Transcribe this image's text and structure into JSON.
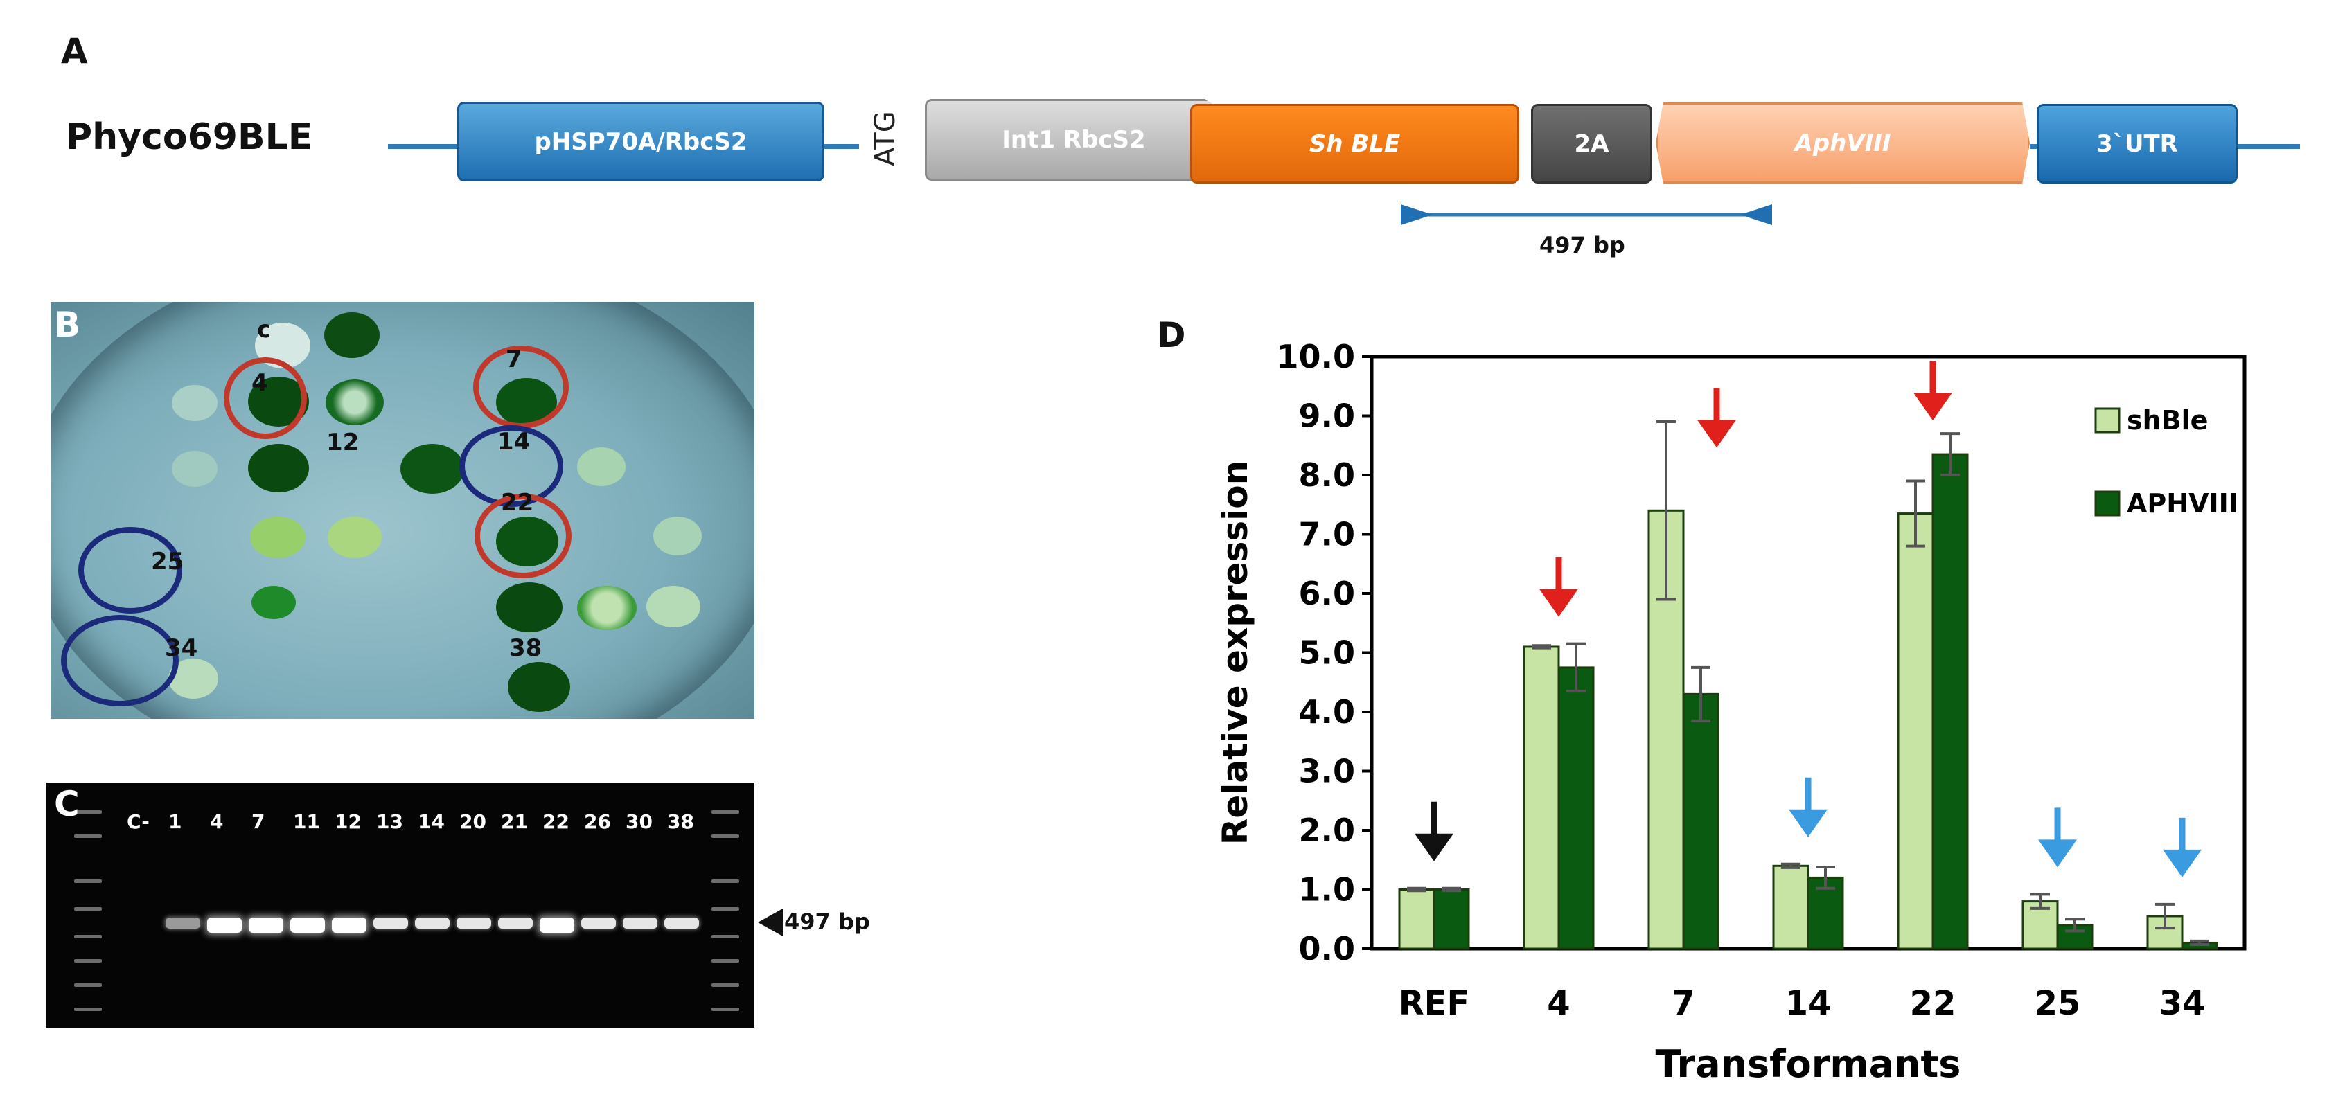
{
  "panel_a": {
    "letter": "A",
    "construct_name": "Phyco69BLE",
    "elements": {
      "promoter": "pHSP70A/RbcS2",
      "start_codon": "ATG",
      "intron": "Int1 RbcS2",
      "gene1": "Sh BLE",
      "linker": "2A",
      "gene2": "AphVIII",
      "utr": "3`UTR"
    },
    "amplicon": "497 bp"
  },
  "panel_b": {
    "letter": "B",
    "labels": {
      "control": "c",
      "c4": "4",
      "c12": "12",
      "c7": "7",
      "c14": "14",
      "c22": "22",
      "c25": "25",
      "c34": "34",
      "c38": "38"
    },
    "colors": {
      "high_ring": "#c0392b",
      "low_ring": "#1b2a7a",
      "colony": "#0c4f12"
    }
  },
  "panel_c": {
    "letter": "C",
    "lanes": [
      "C-",
      "1",
      "4",
      "7",
      "11",
      "12",
      "13",
      "14",
      "20",
      "21",
      "22",
      "26",
      "30",
      "38"
    ],
    "marker": "497 bp"
  },
  "panel_d": {
    "letter": "D",
    "chart_data": {
      "type": "bar",
      "categories": [
        "REF",
        "4",
        "7",
        "14",
        "22",
        "25",
        "34"
      ],
      "series": [
        {
          "name": "shBle",
          "values": [
            1.0,
            5.1,
            7.4,
            1.4,
            7.35,
            0.8,
            0.55
          ],
          "errors": [
            0.02,
            0.02,
            1.5,
            0.03,
            0.55,
            0.12,
            0.2
          ],
          "color": "#c8e4a4"
        },
        {
          "name": "APHVIII",
          "values": [
            1.0,
            4.75,
            4.3,
            1.2,
            8.35,
            0.4,
            0.1
          ],
          "errors": [
            0.02,
            0.4,
            0.45,
            0.18,
            0.35,
            0.1,
            0.03
          ],
          "color": "#0b5a12"
        }
      ],
      "xlabel": "Transformants",
      "ylabel": "Relative expression",
      "ylim": [
        0,
        10
      ],
      "yticks": [
        "0.0",
        "1.0",
        "2.0",
        "3.0",
        "4.0",
        "5.0",
        "6.0",
        "7.0",
        "8.0",
        "9.0",
        "10.0"
      ],
      "grid": false,
      "legend": "top-right",
      "arrows": [
        {
          "category": "REF",
          "color": "#111111"
        },
        {
          "category": "4",
          "color": "#e0201b"
        },
        {
          "category": "7",
          "color": "#e0201b"
        },
        {
          "category": "14",
          "color": "#3a9be0"
        },
        {
          "category": "22",
          "color": "#e0201b"
        },
        {
          "category": "25",
          "color": "#3a9be0"
        },
        {
          "category": "34",
          "color": "#3a9be0"
        }
      ]
    }
  }
}
